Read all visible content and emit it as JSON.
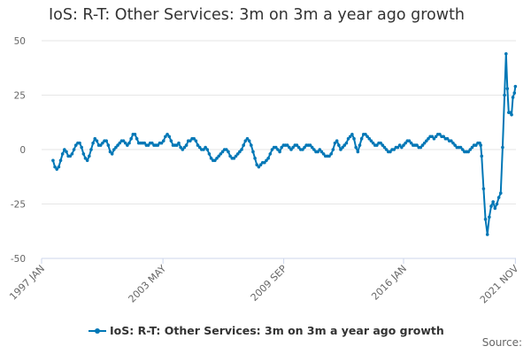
{
  "chart_data": {
    "type": "line",
    "title": "IoS: R-T: Other Services: 3m on 3m a year ago growth",
    "xlabel": "",
    "ylabel": "",
    "ylim": [
      -50,
      50
    ],
    "y_ticks": [
      50,
      25,
      0,
      -25,
      -50
    ],
    "x_range": [
      1997.0,
      2021.9
    ],
    "x_ticks": [
      {
        "label": "1997 JAN",
        "value": 1997.0
      },
      {
        "label": "2003 MAY",
        "value": 2003.37
      },
      {
        "label": "2009 SEP",
        "value": 2009.71
      },
      {
        "label": "2016 JAN",
        "value": 2016.0
      },
      {
        "label": "2021 NOV",
        "value": 2021.87
      }
    ],
    "legend": "bottom",
    "grid": true,
    "series": [
      {
        "name": "IoS: R-T: Other Services: 3m on 3m a year ago growth",
        "color": "#0077b6",
        "points": [
          [
            1997.6,
            -5
          ],
          [
            1997.7,
            -8
          ],
          [
            1997.8,
            -9
          ],
          [
            1997.9,
            -8
          ],
          [
            1998.0,
            -5
          ],
          [
            1998.1,
            -2
          ],
          [
            1998.2,
            0
          ],
          [
            1998.3,
            -1
          ],
          [
            1998.4,
            -3
          ],
          [
            1998.5,
            -3
          ],
          [
            1998.6,
            -2
          ],
          [
            1998.7,
            0
          ],
          [
            1998.8,
            2
          ],
          [
            1998.9,
            3
          ],
          [
            1999.0,
            3
          ],
          [
            1999.1,
            1
          ],
          [
            1999.2,
            -2
          ],
          [
            1999.3,
            -4
          ],
          [
            1999.4,
            -5
          ],
          [
            1999.5,
            -3
          ],
          [
            1999.6,
            0
          ],
          [
            1999.7,
            3
          ],
          [
            1999.8,
            5
          ],
          [
            1999.9,
            4
          ],
          [
            2000.0,
            2
          ],
          [
            2000.1,
            2
          ],
          [
            2000.2,
            3
          ],
          [
            2000.3,
            4
          ],
          [
            2000.4,
            4
          ],
          [
            2000.5,
            2
          ],
          [
            2000.6,
            -1
          ],
          [
            2000.7,
            -2
          ],
          [
            2000.8,
            0
          ],
          [
            2000.9,
            1
          ],
          [
            2001.0,
            2
          ],
          [
            2001.1,
            3
          ],
          [
            2001.2,
            4
          ],
          [
            2001.3,
            4
          ],
          [
            2001.4,
            3
          ],
          [
            2001.5,
            2
          ],
          [
            2001.6,
            3
          ],
          [
            2001.7,
            5
          ],
          [
            2001.8,
            7
          ],
          [
            2001.9,
            7
          ],
          [
            2002.0,
            5
          ],
          [
            2002.1,
            3
          ],
          [
            2002.2,
            3
          ],
          [
            2002.3,
            3
          ],
          [
            2002.4,
            3
          ],
          [
            2002.5,
            2
          ],
          [
            2002.6,
            2
          ],
          [
            2002.7,
            3
          ],
          [
            2002.8,
            3
          ],
          [
            2002.9,
            2
          ],
          [
            2003.0,
            2
          ],
          [
            2003.1,
            2
          ],
          [
            2003.2,
            3
          ],
          [
            2003.3,
            3
          ],
          [
            2003.4,
            4
          ],
          [
            2003.5,
            6
          ],
          [
            2003.6,
            7
          ],
          [
            2003.7,
            6
          ],
          [
            2003.8,
            4
          ],
          [
            2003.9,
            2
          ],
          [
            2004.0,
            2
          ],
          [
            2004.1,
            2
          ],
          [
            2004.2,
            3
          ],
          [
            2004.3,
            1
          ],
          [
            2004.4,
            0
          ],
          [
            2004.5,
            1
          ],
          [
            2004.6,
            2
          ],
          [
            2004.7,
            4
          ],
          [
            2004.8,
            4
          ],
          [
            2004.9,
            5
          ],
          [
            2005.0,
            5
          ],
          [
            2005.1,
            4
          ],
          [
            2005.2,
            2
          ],
          [
            2005.3,
            1
          ],
          [
            2005.4,
            0
          ],
          [
            2005.5,
            0
          ],
          [
            2005.6,
            1
          ],
          [
            2005.7,
            0
          ],
          [
            2005.8,
            -2
          ],
          [
            2005.9,
            -4
          ],
          [
            2006.0,
            -5
          ],
          [
            2006.1,
            -5
          ],
          [
            2006.2,
            -4
          ],
          [
            2006.3,
            -3
          ],
          [
            2006.4,
            -2
          ],
          [
            2006.5,
            -1
          ],
          [
            2006.6,
            0
          ],
          [
            2006.7,
            0
          ],
          [
            2006.8,
            -1
          ],
          [
            2006.9,
            -3
          ],
          [
            2007.0,
            -4
          ],
          [
            2007.1,
            -4
          ],
          [
            2007.2,
            -3
          ],
          [
            2007.3,
            -2
          ],
          [
            2007.4,
            -1
          ],
          [
            2007.5,
            0
          ],
          [
            2007.6,
            2
          ],
          [
            2007.7,
            4
          ],
          [
            2007.8,
            5
          ],
          [
            2007.9,
            4
          ],
          [
            2008.0,
            2
          ],
          [
            2008.1,
            -1
          ],
          [
            2008.2,
            -4
          ],
          [
            2008.3,
            -7
          ],
          [
            2008.4,
            -8
          ],
          [
            2008.5,
            -7
          ],
          [
            2008.6,
            -6
          ],
          [
            2008.7,
            -6
          ],
          [
            2008.8,
            -5
          ],
          [
            2008.9,
            -4
          ],
          [
            2009.0,
            -2
          ],
          [
            2009.1,
            0
          ],
          [
            2009.2,
            1
          ],
          [
            2009.3,
            1
          ],
          [
            2009.4,
            0
          ],
          [
            2009.5,
            -1
          ],
          [
            2009.6,
            1
          ],
          [
            2009.7,
            2
          ],
          [
            2009.8,
            2
          ],
          [
            2009.9,
            2
          ],
          [
            2010.0,
            1
          ],
          [
            2010.1,
            0
          ],
          [
            2010.2,
            1
          ],
          [
            2010.3,
            2
          ],
          [
            2010.4,
            2
          ],
          [
            2010.5,
            1
          ],
          [
            2010.6,
            0
          ],
          [
            2010.7,
            0
          ],
          [
            2010.8,
            1
          ],
          [
            2010.9,
            2
          ],
          [
            2011.0,
            2
          ],
          [
            2011.1,
            2
          ],
          [
            2011.2,
            1
          ],
          [
            2011.3,
            0
          ],
          [
            2011.4,
            -1
          ],
          [
            2011.5,
            -1
          ],
          [
            2011.6,
            0
          ],
          [
            2011.7,
            -1
          ],
          [
            2011.8,
            -2
          ],
          [
            2011.9,
            -3
          ],
          [
            2012.0,
            -3
          ],
          [
            2012.1,
            -3
          ],
          [
            2012.2,
            -2
          ],
          [
            2012.3,
            0
          ],
          [
            2012.4,
            3
          ],
          [
            2012.5,
            4
          ],
          [
            2012.6,
            2
          ],
          [
            2012.7,
            0
          ],
          [
            2012.8,
            1
          ],
          [
            2012.9,
            2
          ],
          [
            2013.0,
            3
          ],
          [
            2013.1,
            5
          ],
          [
            2013.2,
            6
          ],
          [
            2013.3,
            7
          ],
          [
            2013.4,
            5
          ],
          [
            2013.5,
            1
          ],
          [
            2013.6,
            -1
          ],
          [
            2013.7,
            2
          ],
          [
            2013.8,
            5
          ],
          [
            2013.9,
            7
          ],
          [
            2014.0,
            7
          ],
          [
            2014.1,
            6
          ],
          [
            2014.2,
            5
          ],
          [
            2014.3,
            4
          ],
          [
            2014.4,
            3
          ],
          [
            2014.5,
            2
          ],
          [
            2014.6,
            2
          ],
          [
            2014.7,
            3
          ],
          [
            2014.8,
            3
          ],
          [
            2014.9,
            2
          ],
          [
            2015.0,
            1
          ],
          [
            2015.1,
            0
          ],
          [
            2015.2,
            -1
          ],
          [
            2015.3,
            -1
          ],
          [
            2015.4,
            0
          ],
          [
            2015.5,
            0
          ],
          [
            2015.6,
            1
          ],
          [
            2015.7,
            1
          ],
          [
            2015.8,
            2
          ],
          [
            2015.9,
            1
          ],
          [
            2016.0,
            2
          ],
          [
            2016.1,
            3
          ],
          [
            2016.2,
            4
          ],
          [
            2016.3,
            4
          ],
          [
            2016.4,
            3
          ],
          [
            2016.5,
            2
          ],
          [
            2016.6,
            2
          ],
          [
            2016.7,
            2
          ],
          [
            2016.8,
            1
          ],
          [
            2016.9,
            1
          ],
          [
            2017.0,
            2
          ],
          [
            2017.1,
            3
          ],
          [
            2017.2,
            4
          ],
          [
            2017.3,
            5
          ],
          [
            2017.4,
            6
          ],
          [
            2017.5,
            6
          ],
          [
            2017.6,
            5
          ],
          [
            2017.7,
            6
          ],
          [
            2017.8,
            7
          ],
          [
            2017.9,
            7
          ],
          [
            2018.0,
            6
          ],
          [
            2018.1,
            6
          ],
          [
            2018.2,
            5
          ],
          [
            2018.3,
            5
          ],
          [
            2018.4,
            4
          ],
          [
            2018.5,
            4
          ],
          [
            2018.6,
            3
          ],
          [
            2018.7,
            2
          ],
          [
            2018.8,
            1
          ],
          [
            2018.9,
            1
          ],
          [
            2019.0,
            1
          ],
          [
            2019.1,
            0
          ],
          [
            2019.2,
            -1
          ],
          [
            2019.3,
            -1
          ],
          [
            2019.4,
            -1
          ],
          [
            2019.5,
            0
          ],
          [
            2019.6,
            1
          ],
          [
            2019.7,
            2
          ],
          [
            2019.8,
            2
          ],
          [
            2019.9,
            3
          ],
          [
            2020.0,
            3
          ],
          [
            2020.05,
            2
          ],
          [
            2020.1,
            -3
          ],
          [
            2020.2,
            -18
          ],
          [
            2020.3,
            -32
          ],
          [
            2020.4,
            -39
          ],
          [
            2020.5,
            -31
          ],
          [
            2020.6,
            -26
          ],
          [
            2020.7,
            -24
          ],
          [
            2020.8,
            -27
          ],
          [
            2020.9,
            -25
          ],
          [
            2021.0,
            -22
          ],
          [
            2021.1,
            -20
          ],
          [
            2021.2,
            1
          ],
          [
            2021.3,
            25
          ],
          [
            2021.38,
            44
          ],
          [
            2021.45,
            28
          ],
          [
            2021.52,
            17
          ],
          [
            2021.6,
            17
          ],
          [
            2021.67,
            16
          ],
          [
            2021.74,
            24
          ],
          [
            2021.82,
            26
          ],
          [
            2021.87,
            29
          ]
        ]
      }
    ]
  },
  "legend_label": "IoS: R-T: Other Services: 3m on 3m a year ago growth",
  "source_label": "Source:"
}
